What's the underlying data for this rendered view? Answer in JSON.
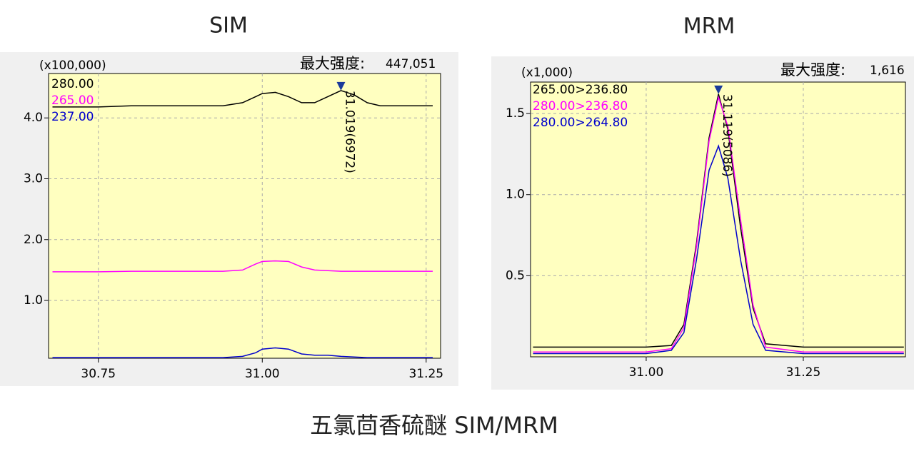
{
  "chart_data": [
    {
      "type": "line",
      "title": "SIM",
      "scale_label": "(x100,000)",
      "max_label": "最大强度:",
      "max_value": "447,051",
      "annotation": "31.019(6972)",
      "x": [
        30.68,
        30.75,
        30.8,
        30.85,
        30.9,
        30.94,
        30.97,
        30.99,
        31.0,
        31.02,
        31.04,
        31.06,
        31.08,
        31.1,
        31.12,
        31.14,
        31.16,
        31.18,
        31.22,
        31.26
      ],
      "series": [
        {
          "name": "280.00",
          "color": "#000000",
          "values": [
            4.18,
            4.18,
            4.2,
            4.2,
            4.2,
            4.2,
            4.25,
            4.35,
            4.4,
            4.42,
            4.35,
            4.25,
            4.25,
            4.35,
            4.45,
            4.38,
            4.25,
            4.2,
            4.2,
            4.2
          ]
        },
        {
          "name": "265.00",
          "color": "#ff00ff",
          "values": [
            1.47,
            1.47,
            1.48,
            1.48,
            1.48,
            1.48,
            1.5,
            1.6,
            1.64,
            1.65,
            1.64,
            1.55,
            1.5,
            1.49,
            1.48,
            1.48,
            1.48,
            1.48,
            1.48,
            1.48
          ]
        },
        {
          "name": "237.00",
          "color": "#0000cc",
          "values": [
            0.06,
            0.06,
            0.06,
            0.06,
            0.06,
            0.06,
            0.08,
            0.14,
            0.2,
            0.22,
            0.2,
            0.12,
            0.1,
            0.1,
            0.08,
            0.07,
            0.06,
            0.06,
            0.06,
            0.06
          ]
        }
      ],
      "xlim": [
        30.674,
        31.272
      ],
      "ylim": [
        0.05,
        4.73
      ],
      "xticks": [
        {
          "value": 30.75,
          "label": "30.75"
        },
        {
          "value": 31,
          "label": "31.00"
        },
        {
          "value": 31.25,
          "label": "31.25"
        }
      ],
      "yticks": [
        {
          "value": 1,
          "label": "1.0"
        },
        {
          "value": 2,
          "label": "2.0"
        },
        {
          "value": 3,
          "label": "3.0"
        },
        {
          "value": 4,
          "label": "4.0"
        }
      ],
      "grid": true
    },
    {
      "type": "line",
      "title": "MRM",
      "scale_label": "(x1,000)",
      "max_label": "最大强度:",
      "max_value": "1,616",
      "annotation": "31.119(5086)",
      "x": [
        30.82,
        30.9,
        31.0,
        31.04,
        31.06,
        31.08,
        31.1,
        31.115,
        31.13,
        31.15,
        31.17,
        31.19,
        31.25,
        31.41
      ],
      "series": [
        {
          "name": "265.00>236.80",
          "color": "#000000",
          "values": [
            0.06,
            0.06,
            0.06,
            0.07,
            0.2,
            0.7,
            1.35,
            1.62,
            1.4,
            0.8,
            0.3,
            0.08,
            0.06,
            0.06
          ]
        },
        {
          "name": "280.00>236.80",
          "color": "#ff00ff",
          "values": [
            0.03,
            0.03,
            0.03,
            0.05,
            0.18,
            0.68,
            1.33,
            1.6,
            1.42,
            0.85,
            0.32,
            0.06,
            0.03,
            0.03
          ]
        },
        {
          "name": "280.00>264.80",
          "color": "#0000cc",
          "values": [
            0.02,
            0.02,
            0.02,
            0.04,
            0.15,
            0.6,
            1.15,
            1.3,
            1.1,
            0.6,
            0.2,
            0.04,
            0.02,
            0.02
          ]
        }
      ],
      "xlim": [
        30.816,
        31.4125
      ],
      "ylim": [
        0,
        1.694
      ],
      "xticks": [
        {
          "value": 31,
          "label": "31.00"
        },
        {
          "value": 31.25,
          "label": "31.25"
        }
      ],
      "yticks": [
        {
          "value": 0.5,
          "label": "0.5"
        },
        {
          "value": 1,
          "label": "1.0"
        },
        {
          "value": 1.5,
          "label": "1.5"
        }
      ],
      "grid": true
    }
  ],
  "caption": "五氯茴香硫醚 SIM/MRM"
}
